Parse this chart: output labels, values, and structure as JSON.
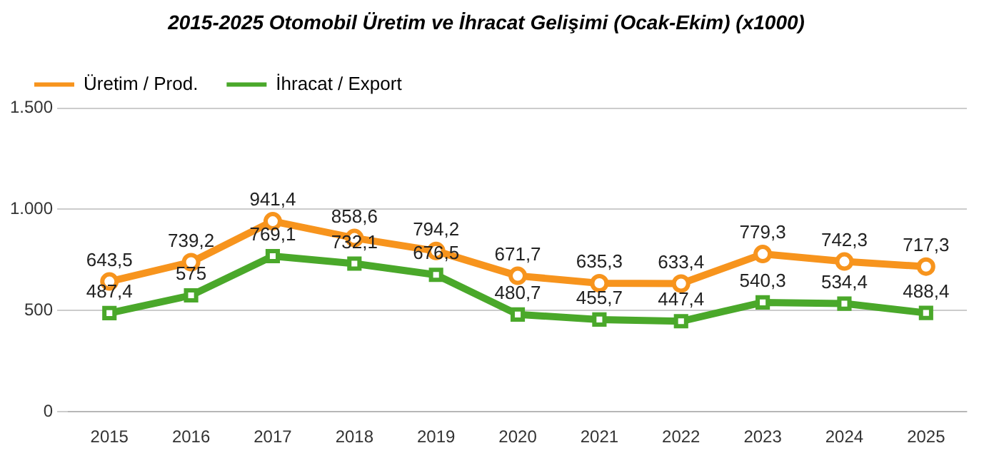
{
  "chart_data": {
    "type": "line",
    "title": "2015-2025 Otomobil Üretim ve İhracat Gelişimi (Ocak-Ekim) (x1000)",
    "categories": [
      "2015",
      "2016",
      "2017",
      "2018",
      "2019",
      "2020",
      "2021",
      "2022",
      "2023",
      "2024",
      "2025"
    ],
    "series": [
      {
        "name": "Üretim / Prod.",
        "color": "#f7941d",
        "marker": "circle",
        "values": [
          643.5,
          739.2,
          941.4,
          858.6,
          794.2,
          671.7,
          635.3,
          633.4,
          779.3,
          742.3,
          717.3
        ],
        "value_labels": [
          "643,5",
          "739,2",
          "941,4",
          "858,6",
          "794,2",
          "671,7",
          "635,3",
          "633,4",
          "779,3",
          "742,3",
          "717,3"
        ]
      },
      {
        "name": "İhracat / Export",
        "color": "#4aa82a",
        "marker": "square",
        "values": [
          487.4,
          575,
          769.1,
          732.1,
          676.5,
          480.7,
          455.7,
          447.4,
          540.3,
          534.4,
          488.4
        ],
        "value_labels": [
          "487,4",
          "575",
          "769,1",
          "732,1",
          "676,5",
          "480,7",
          "455,7",
          "447,4",
          "540,3",
          "534,4",
          "488,4"
        ]
      }
    ],
    "ylim": [
      0,
      1500
    ],
    "yticks": [
      0,
      {
        "value": 500,
        "label": "500"
      },
      {
        "value": 1000,
        "label": "1.000"
      },
      {
        "value": 1500,
        "label": "1.500"
      }
    ],
    "grid": "y",
    "legend": "top left"
  }
}
